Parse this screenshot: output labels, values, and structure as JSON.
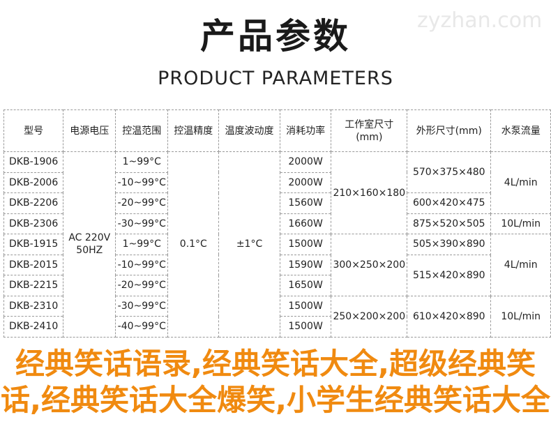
{
  "title": "产品参数",
  "subtitle": "PRODUCT PARAMETERS",
  "watermark": "zyzhan.com",
  "headers": [
    "型号",
    "电源电压",
    "控温范围",
    "控温精度",
    "温度波动度",
    "消耗功率",
    "工作室尺寸(mm)",
    "外形尺寸(mm)",
    "水泵流量"
  ],
  "models": [
    "DKB-1906",
    "DKB-2006",
    "DKB-2206",
    "DKB-2306",
    "DKB-1915",
    "DKB-2015",
    "DKB-2215",
    "DKB-2310",
    "DKB-2410"
  ],
  "ranges": [
    "1~99°C",
    "-10~99°C",
    "-20~99°C",
    "-30~99°C",
    "1~99°C",
    "-10~99°C",
    "-20~99°C",
    "-30~99°C",
    "-40~99°C"
  ],
  "powers": [
    "2000W",
    "2000W",
    "1560W",
    "1660W",
    "1500W",
    "1590W",
    "1650W",
    "1500W",
    "1500W"
  ],
  "voltage": [
    "AC 220V",
    "50HZ"
  ],
  "precision": "0.1°C",
  "fluctuation": "±1°C",
  "chamber": [
    "210×160×180",
    "300×250×200",
    "250×200×200"
  ],
  "outer": [
    "570×375×480",
    "600×420×475",
    "875×520×505",
    "505×390×890",
    "515×420×890",
    "610×420×890"
  ],
  "pump": [
    "4L/min",
    "10L/min",
    "4L/min",
    "10L/min"
  ],
  "overlay": "经典笑话语录,经典笑话大全,超级经典笑话,经典笑话大全爆笑,小学生经典笑话大全",
  "overlay_color": "#f08a10"
}
